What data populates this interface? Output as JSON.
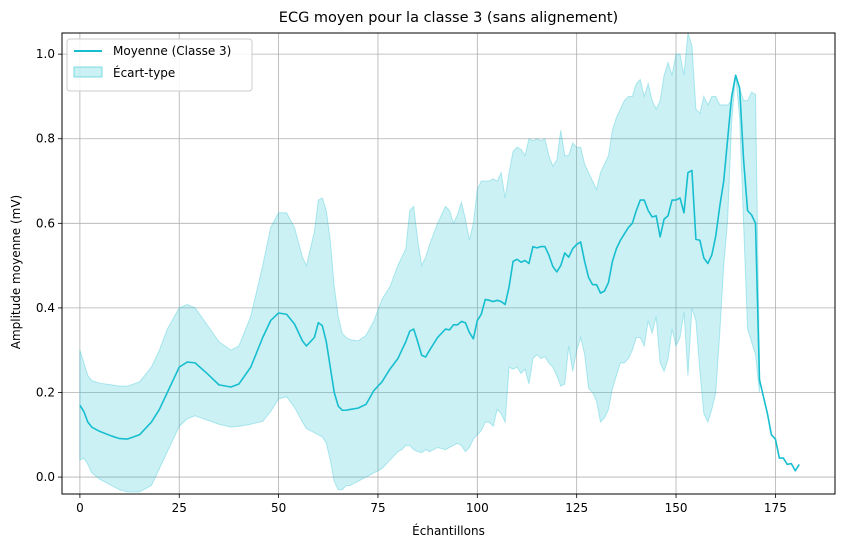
{
  "chart_data": {
    "type": "line",
    "title": "ECG moyen pour la classe 3 (sans alignement)",
    "xlabel": "Échantillons",
    "ylabel": "Amplitude moyenne (mV)",
    "xlim": [
      -4.5,
      190
    ],
    "ylim": [
      -0.04,
      1.05
    ],
    "xticks": [
      0,
      25,
      50,
      75,
      100,
      125,
      150,
      175
    ],
    "yticks": [
      0.0,
      0.2,
      0.4,
      0.6,
      0.8,
      1.0
    ],
    "xtick_labels": [
      "0",
      "25",
      "50",
      "75",
      "100",
      "125",
      "150",
      "175"
    ],
    "ytick_labels": [
      "0.0",
      "0.2",
      "0.4",
      "0.6",
      "0.8",
      "1.0"
    ],
    "grid": true,
    "legend_position": "top-left",
    "colors": {
      "line": "#17becf",
      "band": "#17becf"
    },
    "series": [
      {
        "name": "Moyenne (Classe 3)",
        "kind": "line",
        "x": [
          0,
          1,
          2,
          3,
          5,
          8,
          10,
          12,
          15,
          18,
          20,
          22,
          25,
          27,
          29,
          32,
          35,
          38,
          40,
          43,
          46,
          48,
          50,
          52,
          54,
          56,
          57,
          59,
          60,
          61,
          62,
          63,
          64,
          65,
          66,
          67,
          68,
          70,
          72,
          74,
          76,
          78,
          80,
          81,
          82,
          83,
          84,
          85,
          86,
          87,
          88,
          90,
          92,
          93,
          94,
          95,
          96,
          97,
          98,
          99,
          100,
          101,
          102,
          103,
          104,
          105,
          106,
          107,
          108,
          109,
          110,
          111,
          112,
          113,
          114,
          115,
          116,
          117,
          118,
          119,
          120,
          121,
          122,
          123,
          124,
          125,
          126,
          127,
          128,
          129,
          130,
          131,
          132,
          133,
          134,
          135,
          136,
          137,
          138,
          139,
          140,
          141,
          142,
          143,
          144,
          145,
          146,
          147,
          148,
          149,
          150,
          151,
          152,
          153,
          154,
          155,
          156,
          157,
          158,
          159,
          160,
          161,
          162,
          163,
          164,
          165,
          166,
          167,
          168,
          169,
          170,
          171,
          172,
          173,
          174,
          175,
          176,
          177,
          178,
          179,
          180,
          181
        ],
        "y": [
          0.17,
          0.155,
          0.13,
          0.118,
          0.108,
          0.097,
          0.091,
          0.09,
          0.1,
          0.13,
          0.16,
          0.2,
          0.26,
          0.272,
          0.27,
          0.245,
          0.218,
          0.213,
          0.22,
          0.26,
          0.33,
          0.37,
          0.388,
          0.385,
          0.362,
          0.322,
          0.31,
          0.33,
          0.365,
          0.358,
          0.32,
          0.26,
          0.2,
          0.168,
          0.158,
          0.158,
          0.16,
          0.163,
          0.172,
          0.205,
          0.225,
          0.255,
          0.28,
          0.3,
          0.32,
          0.345,
          0.35,
          0.32,
          0.288,
          0.284,
          0.3,
          0.33,
          0.35,
          0.348,
          0.36,
          0.36,
          0.368,
          0.365,
          0.342,
          0.327,
          0.37,
          0.385,
          0.42,
          0.418,
          0.415,
          0.418,
          0.415,
          0.408,
          0.45,
          0.51,
          0.515,
          0.508,
          0.512,
          0.505,
          0.545,
          0.542,
          0.545,
          0.545,
          0.525,
          0.498,
          0.485,
          0.5,
          0.53,
          0.52,
          0.54,
          0.55,
          0.556,
          0.51,
          0.472,
          0.455,
          0.455,
          0.435,
          0.44,
          0.46,
          0.51,
          0.54,
          0.56,
          0.575,
          0.59,
          0.6,
          0.63,
          0.655,
          0.655,
          0.63,
          0.615,
          0.618,
          0.568,
          0.61,
          0.618,
          0.655,
          0.655,
          0.66,
          0.625,
          0.72,
          0.725,
          0.562,
          0.56,
          0.518,
          0.505,
          0.525,
          0.57,
          0.64,
          0.7,
          0.8,
          0.9,
          0.95,
          0.92,
          0.75,
          0.63,
          0.62,
          0.6,
          0.23,
          0.19,
          0.15,
          0.1,
          0.09,
          0.045,
          0.045,
          0.03,
          0.032,
          0.015,
          0.03
        ]
      },
      {
        "name": "Écart-type",
        "kind": "band",
        "x": [
          0,
          1,
          2,
          3,
          5,
          8,
          10,
          12,
          15,
          18,
          20,
          22,
          25,
          27,
          29,
          32,
          35,
          38,
          40,
          43,
          46,
          48,
          50,
          52,
          54,
          56,
          57,
          59,
          60,
          61,
          62,
          63,
          64,
          65,
          66,
          67,
          68,
          70,
          72,
          74,
          76,
          78,
          80,
          81,
          82,
          83,
          84,
          85,
          86,
          87,
          88,
          90,
          92,
          93,
          94,
          95,
          96,
          97,
          98,
          99,
          100,
          101,
          102,
          103,
          104,
          105,
          106,
          107,
          108,
          109,
          110,
          111,
          112,
          113,
          114,
          115,
          116,
          117,
          118,
          119,
          120,
          121,
          122,
          123,
          124,
          125,
          126,
          127,
          128,
          129,
          130,
          131,
          132,
          133,
          134,
          135,
          136,
          137,
          138,
          139,
          140,
          141,
          142,
          143,
          144,
          145,
          146,
          147,
          148,
          149,
          150,
          151,
          152,
          153,
          154,
          155,
          156,
          157,
          158,
          159,
          160,
          161,
          162,
          163,
          164,
          165,
          166,
          167,
          168,
          169,
          170,
          171
        ],
        "upper": [
          0.3,
          0.27,
          0.24,
          0.228,
          0.222,
          0.218,
          0.215,
          0.215,
          0.225,
          0.26,
          0.3,
          0.35,
          0.4,
          0.408,
          0.4,
          0.36,
          0.32,
          0.3,
          0.31,
          0.38,
          0.5,
          0.59,
          0.625,
          0.625,
          0.59,
          0.52,
          0.5,
          0.58,
          0.655,
          0.66,
          0.63,
          0.56,
          0.45,
          0.38,
          0.34,
          0.33,
          0.325,
          0.322,
          0.335,
          0.37,
          0.42,
          0.45,
          0.5,
          0.52,
          0.54,
          0.63,
          0.64,
          0.56,
          0.5,
          0.52,
          0.55,
          0.6,
          0.64,
          0.63,
          0.6,
          0.62,
          0.65,
          0.61,
          0.56,
          0.6,
          0.68,
          0.7,
          0.7,
          0.7,
          0.705,
          0.7,
          0.72,
          0.66,
          0.72,
          0.77,
          0.78,
          0.775,
          0.76,
          0.8,
          0.795,
          0.8,
          0.795,
          0.8,
          0.76,
          0.735,
          0.75,
          0.82,
          0.76,
          0.76,
          0.79,
          0.78,
          0.78,
          0.74,
          0.72,
          0.7,
          0.68,
          0.72,
          0.74,
          0.76,
          0.82,
          0.85,
          0.87,
          0.89,
          0.9,
          0.9,
          0.93,
          0.94,
          0.9,
          0.93,
          0.89,
          0.87,
          0.89,
          0.95,
          0.98,
          0.95,
          1.0,
          1.0,
          0.95,
          1.05,
          1.02,
          0.87,
          0.86,
          0.9,
          0.88,
          0.9,
          0.9,
          0.88,
          0.88,
          0.88,
          0.89,
          0.95,
          0.92,
          0.89,
          0.89,
          0.91,
          0.905,
          0.26
        ],
        "lower": [
          0.04,
          0.045,
          0.03,
          0.01,
          -0.005,
          -0.02,
          -0.03,
          -0.035,
          -0.035,
          -0.02,
          0.02,
          0.06,
          0.12,
          0.138,
          0.145,
          0.135,
          0.125,
          0.118,
          0.12,
          0.125,
          0.132,
          0.155,
          0.185,
          0.19,
          0.165,
          0.13,
          0.115,
          0.105,
          0.1,
          0.095,
          0.08,
          0.04,
          -0.01,
          -0.03,
          -0.03,
          -0.02,
          -0.02,
          -0.01,
          0.0,
          0.01,
          0.02,
          0.04,
          0.06,
          0.065,
          0.075,
          0.075,
          0.065,
          0.06,
          0.058,
          0.065,
          0.06,
          0.07,
          0.065,
          0.07,
          0.075,
          0.08,
          0.075,
          0.06,
          0.07,
          0.09,
          0.1,
          0.11,
          0.13,
          0.13,
          0.12,
          0.16,
          0.15,
          0.13,
          0.26,
          0.255,
          0.26,
          0.245,
          0.255,
          0.22,
          0.28,
          0.29,
          0.28,
          0.285,
          0.27,
          0.26,
          0.24,
          0.215,
          0.22,
          0.31,
          0.25,
          0.3,
          0.33,
          0.29,
          0.21,
          0.2,
          0.18,
          0.13,
          0.14,
          0.16,
          0.21,
          0.24,
          0.27,
          0.27,
          0.28,
          0.3,
          0.33,
          0.33,
          0.31,
          0.37,
          0.34,
          0.38,
          0.27,
          0.25,
          0.28,
          0.35,
          0.31,
          0.33,
          0.39,
          0.24,
          0.4,
          0.37,
          0.25,
          0.15,
          0.13,
          0.16,
          0.2,
          0.34,
          0.5,
          0.61,
          0.84,
          0.95,
          0.85,
          0.6,
          0.35,
          0.32,
          0.29,
          0.2
        ]
      }
    ]
  }
}
